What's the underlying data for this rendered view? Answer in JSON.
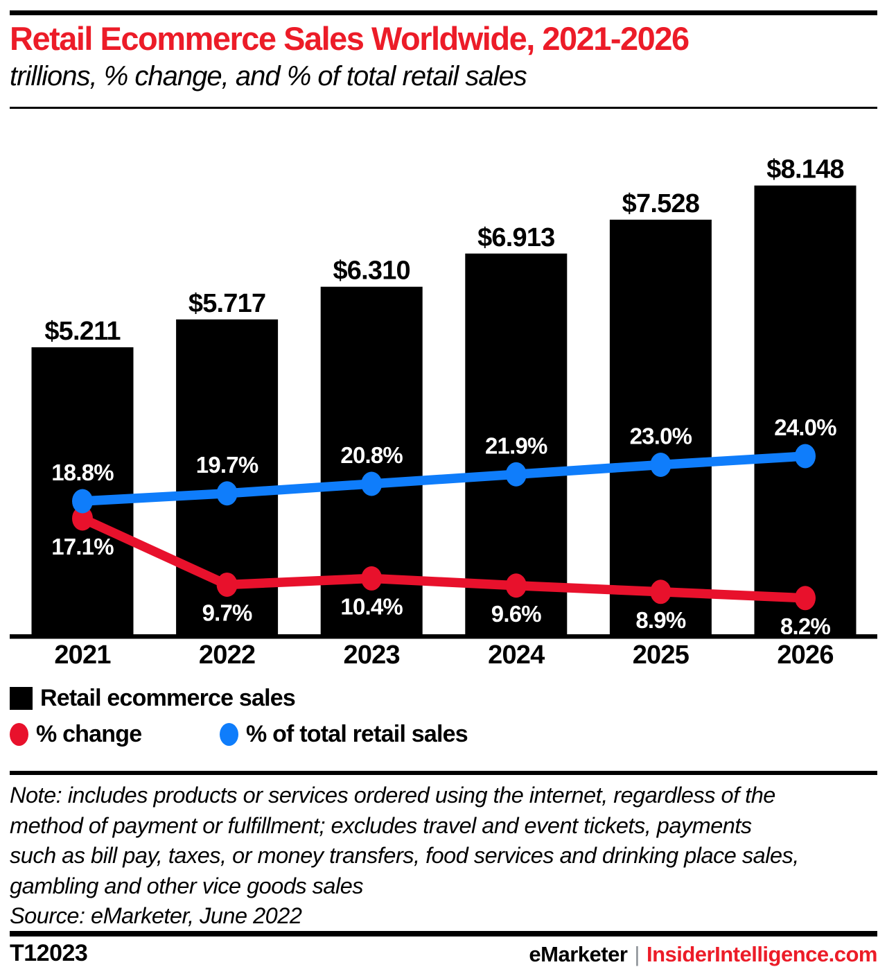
{
  "header": {
    "title": "Retail Ecommerce Sales Worldwide, 2021-2026",
    "subtitle": "trillions, % change, and % of total retail sales"
  },
  "chart_data": {
    "type": "bar",
    "subtype": "bar-line-combo",
    "categories": [
      "2021",
      "2022",
      "2023",
      "2024",
      "2025",
      "2026"
    ],
    "series": [
      {
        "name": "Retail ecommerce sales",
        "type": "bar",
        "unit": "trillions of US dollars",
        "color": "#000000",
        "values": [
          5.211,
          5.717,
          6.31,
          6.913,
          7.528,
          8.148
        ],
        "labels": [
          "$5.211",
          "$5.717",
          "$6.310",
          "$6.913",
          "$7.528",
          "$8.148"
        ]
      },
      {
        "name": "% change",
        "type": "line",
        "unit": "percent",
        "color": "#e8112c",
        "values": [
          17.1,
          9.7,
          10.4,
          9.6,
          8.9,
          8.2
        ],
        "labels": [
          "17.1%",
          "9.7%",
          "10.4%",
          "9.6%",
          "8.9%",
          "8.2%"
        ]
      },
      {
        "name": "% of total retail sales",
        "type": "line",
        "unit": "percent",
        "color": "#0f7dfb",
        "values": [
          18.8,
          19.7,
          20.8,
          21.9,
          23.0,
          24.0
        ],
        "labels": [
          "18.8%",
          "19.7%",
          "20.8%",
          "21.9%",
          "23.0%",
          "24.0%"
        ]
      }
    ],
    "title": "Retail Ecommerce Sales Worldwide, 2021-2026",
    "subtitle": "trillions, % change, and % of total retail sales",
    "xlabel": "",
    "ylabel": "",
    "value_axis": "hidden",
    "grid": "off",
    "legend_position": "bottom-left",
    "data_label_color_on_bars": "#ffffff",
    "data_label_color_above_bars": "#000000"
  },
  "legend": {
    "items": [
      {
        "label": "Retail ecommerce sales",
        "swatch": "black-square"
      },
      {
        "label": "% change",
        "swatch": "red-dot",
        "color": "#e8112c"
      },
      {
        "label": "% of total retail sales",
        "swatch": "blue-dot",
        "color": "#0f7dfb"
      }
    ]
  },
  "note": {
    "lines": [
      "Note: includes products or services ordered using the internet, regardless of the",
      "method of payment or fulfillment; excludes travel and event tickets, payments",
      "such as bill pay, taxes, or money transfers, food services and drinking place sales,",
      "gambling and other vice goods sales"
    ],
    "source": "Source: eMarketer, June 2022"
  },
  "footer": {
    "id": "T12023",
    "brand": "eMarketer",
    "divider": "|",
    "site": "InsiderIntelligence.com"
  }
}
